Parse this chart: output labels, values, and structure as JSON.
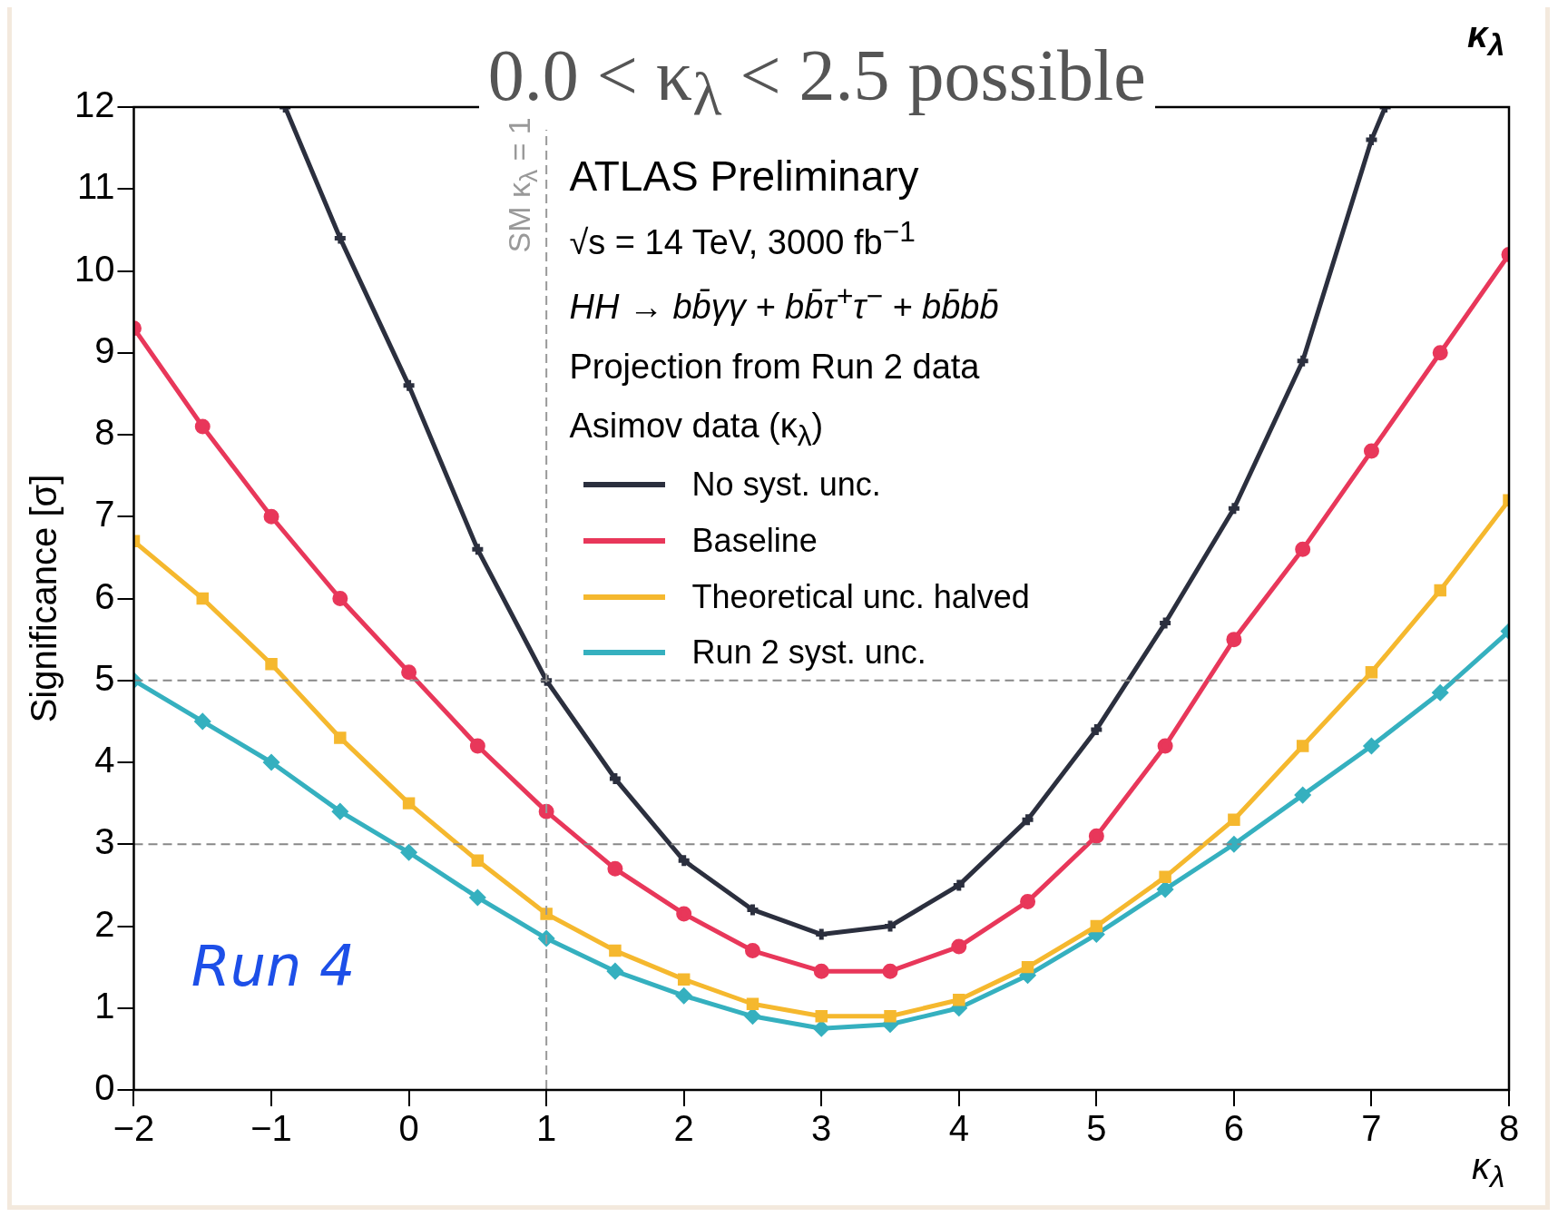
{
  "chart_data": {
    "type": "line",
    "title": "0.0 < κ$_{λ}$ < 2.5 possible",
    "xlabel": "κ$_{λ}$",
    "ylabel": "Significance [σ]",
    "annotations": [
      "κ$_{λ}$",
      "ATLAS Preliminary",
      "√s = 14 TeV, 3000 fb$^{−1}$",
      "HH → bb̄γγ + bb̄τ$^{+}$τ$^{−}$ + bb̄bb̄",
      "Projection from Run 2 data",
      "Asimov data (κ$_{λ}$)",
      "Run 4"
    ],
    "xlim": [
      -2,
      8
    ],
    "xticks": [
      -2,
      -1,
      0,
      1,
      2,
      3,
      4,
      5,
      6,
      7,
      8
    ],
    "ylim": [
      0,
      12
    ],
    "yticks": [
      0,
      1,
      2,
      3,
      4,
      5,
      6,
      7,
      8,
      9,
      10,
      11,
      12
    ],
    "grid": false,
    "legend": "top",
    "line_style": "solid",
    "ref_lines": [
      {
        "axis": "x",
        "value": 1,
        "label": "SM κ$_{λ}$ = 1",
        "color": "#999999",
        "line_style": "dashed"
      },
      {
        "axis": "y",
        "value": 5,
        "color": "#888888",
        "line_style": "dashed"
      },
      {
        "axis": "y",
        "value": 3,
        "color": "#888888",
        "line_style": "dashed"
      }
    ],
    "series": [
      {
        "name": "No syst. unc.",
        "color": "#2b2f3e",
        "marker": "cross",
        "x": [
          -0.9,
          -0.5,
          0,
          0.5,
          1,
          1.5,
          2,
          2.5,
          3,
          3.5,
          4,
          4.5,
          5,
          5.5,
          6,
          6.5,
          7,
          7.1
        ],
        "values": [
          12,
          10.4,
          8.6,
          6.6,
          5.0,
          3.8,
          2.8,
          2.2,
          1.9,
          2.0,
          2.5,
          3.3,
          4.4,
          5.7,
          7.1,
          8.9,
          11.6,
          12
        ]
      },
      {
        "name": "Baseline",
        "color": "#e8375a",
        "marker": "circle",
        "x": [
          -2,
          -1.5,
          -1,
          -0.5,
          0,
          0.5,
          1,
          1.5,
          2,
          2.5,
          3,
          3.5,
          4,
          4.5,
          5,
          5.5,
          6,
          6.5,
          7,
          7.5,
          8
        ],
        "values": [
          9.3,
          8.1,
          7.0,
          6.0,
          5.1,
          4.2,
          3.4,
          2.7,
          2.15,
          1.7,
          1.45,
          1.45,
          1.75,
          2.3,
          3.1,
          4.2,
          5.5,
          6.6,
          7.8,
          9.0,
          10.2
        ]
      },
      {
        "name": "Theoretical unc. halved",
        "color": "#f5b82e",
        "marker": "square",
        "x": [
          -2,
          -1.5,
          -1,
          -0.5,
          0,
          0.5,
          1,
          1.5,
          2,
          2.5,
          3,
          3.5,
          4,
          4.5,
          5,
          5.5,
          6,
          6.5,
          7,
          7.5,
          8
        ],
        "values": [
          6.7,
          6.0,
          5.2,
          4.3,
          3.5,
          2.8,
          2.15,
          1.7,
          1.35,
          1.05,
          0.9,
          0.9,
          1.1,
          1.5,
          2.0,
          2.6,
          3.3,
          4.2,
          5.1,
          6.1,
          7.2
        ]
      },
      {
        "name": "Run 2 syst. unc.",
        "color": "#35b0bf",
        "marker": "diamond",
        "x": [
          -2,
          -1.5,
          -1,
          -0.5,
          0,
          0.5,
          1,
          1.5,
          2,
          2.5,
          3,
          3.5,
          4,
          4.5,
          5,
          5.5,
          6,
          6.5,
          7,
          7.5,
          8
        ],
        "values": [
          5.0,
          4.5,
          4.0,
          3.4,
          2.9,
          2.35,
          1.85,
          1.45,
          1.15,
          0.9,
          0.75,
          0.8,
          1.0,
          1.4,
          1.9,
          2.45,
          3.0,
          3.6,
          4.2,
          4.85,
          5.6
        ]
      }
    ]
  }
}
